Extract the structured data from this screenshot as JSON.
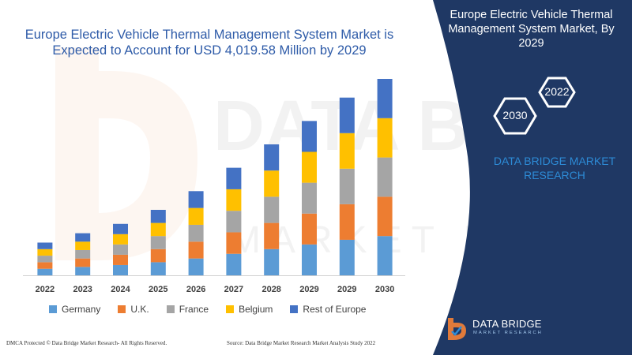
{
  "title": "Europe Electric Vehicle Thermal Management System Market is Expected to Account for USD 4,019.58 Million by 2029",
  "panel": {
    "title": "Europe Electric Vehicle Thermal Management System Market, By 2029",
    "hex_year_top": "2022",
    "hex_year_bottom": "2030",
    "brand": "DATA BRIDGE MARKET RESEARCH"
  },
  "footer": {
    "left": "DMCA Protected © Data Bridge Market Research- All Rights Reserved.",
    "right": "Source: Data Bridge Market Research Market Analysis Study 2022"
  },
  "logo": {
    "name": "DATA BRIDGE",
    "sub": "MARKET RESEARCH"
  },
  "colors": {
    "navy": "#1f3864",
    "title_blue": "#2e5ba8",
    "brand_blue": "#2d8bd6"
  },
  "chart_data": {
    "type": "bar",
    "stacked": true,
    "categories": [
      "2022",
      "2023",
      "2024",
      "2025",
      "2026",
      "2027",
      "2028",
      "2029",
      "2029",
      "2030"
    ],
    "series": [
      {
        "name": "Germany",
        "color": "#5b9bd5",
        "values": [
          7,
          9,
          11,
          14,
          18,
          23,
          28,
          33,
          38,
          42
        ]
      },
      {
        "name": "U.K.",
        "color": "#ed7d31",
        "values": [
          7,
          9,
          11,
          14,
          18,
          23,
          28,
          33,
          38,
          42
        ]
      },
      {
        "name": "France",
        "color": "#a5a5a5",
        "values": [
          7,
          9,
          11,
          14,
          18,
          23,
          28,
          33,
          38,
          42
        ]
      },
      {
        "name": "Belgium",
        "color": "#ffc000",
        "values": [
          7,
          9,
          11,
          14,
          18,
          23,
          28,
          33,
          38,
          42
        ]
      },
      {
        "name": "Rest of Europe",
        "color": "#4472c4",
        "values": [
          7,
          9,
          11,
          14,
          18,
          23,
          28,
          33,
          38,
          42
        ]
      }
    ],
    "ylim": [
      0,
      210
    ],
    "grid": false,
    "legend": "bottom"
  }
}
